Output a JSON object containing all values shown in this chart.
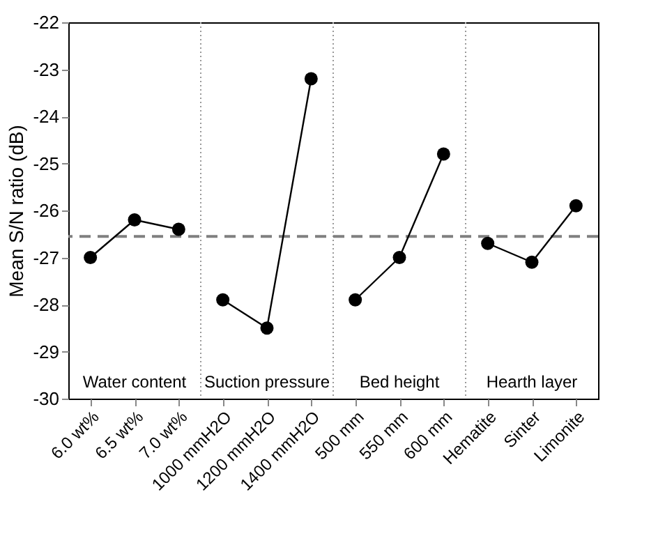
{
  "chart_data": {
    "type": "line",
    "ylabel": "Mean S/N ratio (dB)",
    "categories": [
      "6.0 wt%",
      "6.5 wt%",
      "7.0 wt%",
      "1000 mmH2O",
      "1200 mmH2O",
      "1400 mmH2O",
      "500 mm",
      "550 mm",
      "600 mm",
      "Hematite",
      "Sinter",
      "Limonite"
    ],
    "series": [
      {
        "color": "#000000",
        "values": [
          -27.0,
          -26.2,
          -26.4,
          null,
          null,
          null,
          null,
          null,
          null,
          null,
          null,
          null
        ]
      },
      {
        "color": "#000000",
        "values": [
          null,
          null,
          null,
          -27.9,
          -28.5,
          -23.2,
          null,
          null,
          null,
          null,
          null,
          null
        ]
      },
      {
        "color": "#000000",
        "values": [
          null,
          null,
          null,
          null,
          null,
          null,
          -27.9,
          -27.0,
          -24.8,
          null,
          null,
          null
        ]
      },
      {
        "color": "#000000",
        "values": [
          null,
          null,
          null,
          null,
          null,
          null,
          null,
          null,
          null,
          -26.7,
          -27.1,
          -25.9
        ]
      }
    ],
    "annotations": [
      "Water content",
      "Suction pressure",
      "Bed height",
      "Hearth layer"
    ],
    "ref_lines": [
      {
        "axis": "y",
        "value": -26.55,
        "color": "#808080",
        "line_style": "dashed"
      }
    ],
    "ylim": [
      -30,
      -22
    ],
    "yticks": [
      -30,
      -29,
      -28,
      -27,
      -26,
      -25,
      -24,
      -23,
      -22
    ],
    "marker": "circle",
    "line_style": "solid",
    "grid": false
  }
}
